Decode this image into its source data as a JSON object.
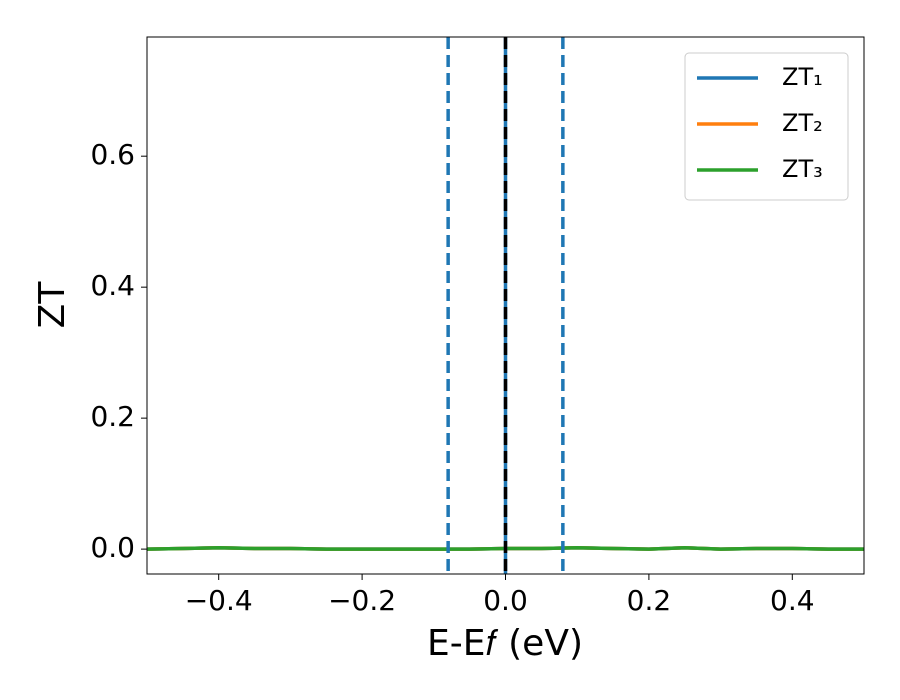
{
  "chart_data": {
    "type": "line",
    "x_label": "E-E𝑓 (eV)",
    "y_label": "ZT",
    "x": [
      -0.5,
      -0.45,
      -0.4,
      -0.35,
      -0.3,
      -0.25,
      -0.2,
      -0.15,
      -0.1,
      -0.05,
      0,
      0.05,
      0.1,
      0.15,
      0.2,
      0.25,
      0.3,
      0.35,
      0.4,
      0.45,
      0.5
    ],
    "series": [
      {
        "name": "ZT₁",
        "color": "#1f77b4",
        "values": [
          0,
          0.001,
          0.002,
          0.001,
          0.001,
          0,
          0,
          0,
          0,
          0,
          0.001,
          0.001,
          0.002,
          0.001,
          0,
          0.002,
          0,
          0.001,
          0.001,
          0,
          0
        ]
      },
      {
        "name": "ZT₂",
        "color": "#ff7f0e",
        "values": [
          0,
          0.001,
          0.002,
          0.001,
          0.001,
          0,
          0,
          0,
          0,
          0,
          0.001,
          0.001,
          0.002,
          0.001,
          0,
          0.002,
          0,
          0.001,
          0.001,
          0,
          0
        ]
      },
      {
        "name": "ZT₃",
        "color": "#2ca02c",
        "values": [
          0,
          0.001,
          0.002,
          0.001,
          0.001,
          0,
          0,
          0,
          0,
          0,
          0.001,
          0.001,
          0.002,
          0.001,
          0,
          0.002,
          0,
          0.001,
          0.001,
          0,
          0
        ]
      }
    ],
    "vlines": [
      {
        "x": -0.08,
        "color": "#1f77b4",
        "style": "dashed"
      },
      {
        "x": 0.08,
        "color": "#1f77b4",
        "style": "dashed"
      },
      {
        "x": 0,
        "color": "#1f77b4",
        "style": "solid"
      },
      {
        "x": 0,
        "color": "#000000",
        "style": "dashed"
      }
    ],
    "xlim": [
      -0.5,
      0.5
    ],
    "xticks": [
      {
        "value": -0.4,
        "label": "−0.4"
      },
      {
        "value": -0.2,
        "label": "−0.2"
      },
      {
        "value": 0,
        "label": "0.0"
      },
      0.2,
      0.4
    ],
    "ylim": [
      -0.038,
      0.782
    ],
    "yticks": [
      {
        "value": 0,
        "label": "0.0"
      },
      0.2,
      0.4,
      0.6
    ],
    "legend": "upper right",
    "grid": false
  }
}
